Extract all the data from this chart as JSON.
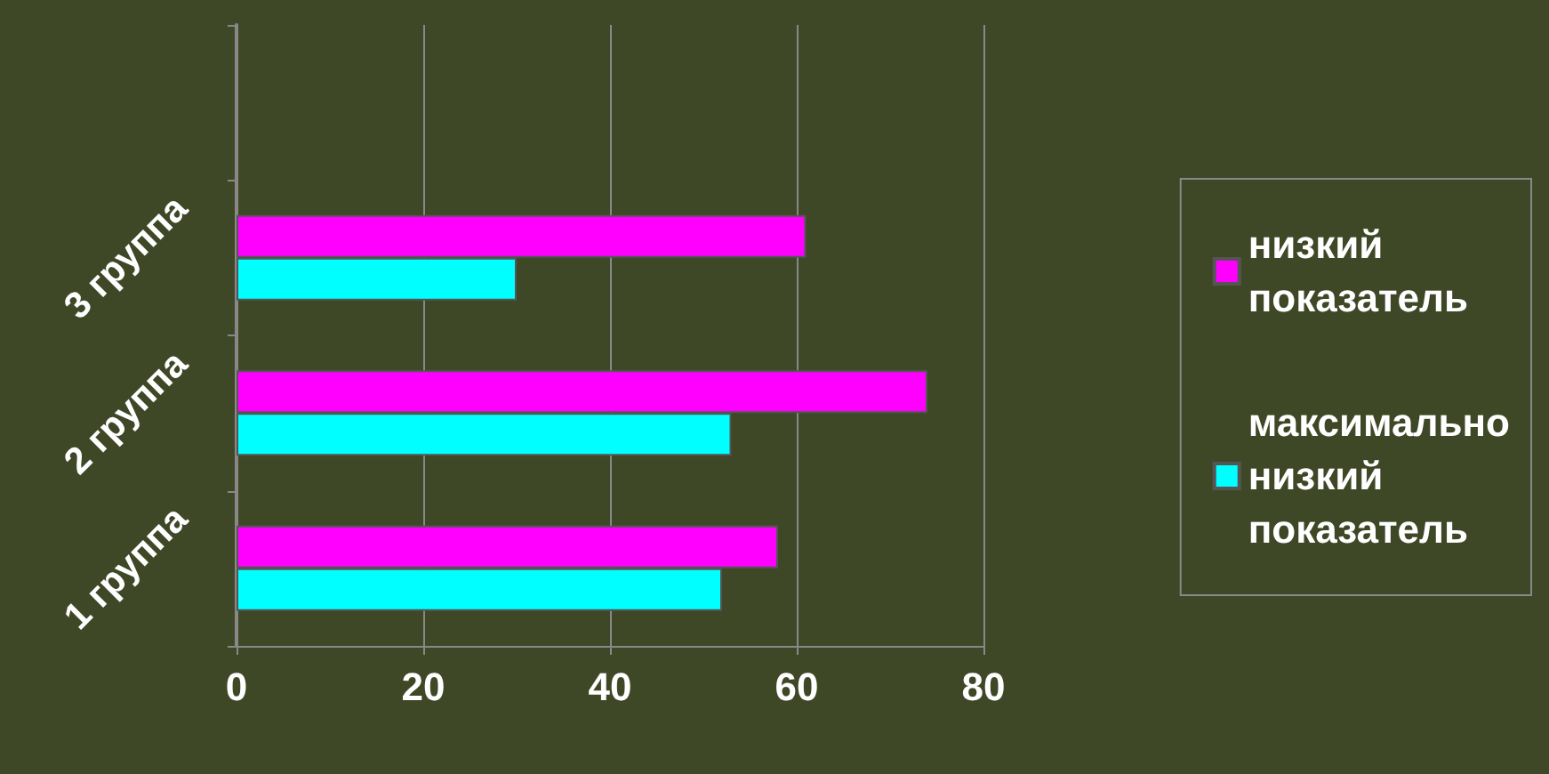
{
  "chart_data": {
    "type": "bar",
    "orientation": "horizontal",
    "categories": [
      null,
      "3 группа",
      "2 группа",
      "1 группа"
    ],
    "series": [
      {
        "name": "низкий показатель",
        "color": "#ff00ff",
        "values": [
          null,
          61,
          74,
          58
        ]
      },
      {
        "name": "максимально низкий показатель",
        "color": "#00ffff",
        "values": [
          null,
          30,
          53,
          52
        ]
      }
    ],
    "xlim": [
      0,
      80
    ],
    "xticks": [
      0,
      20,
      40,
      60,
      80
    ],
    "grid": "x",
    "legend": "right"
  }
}
